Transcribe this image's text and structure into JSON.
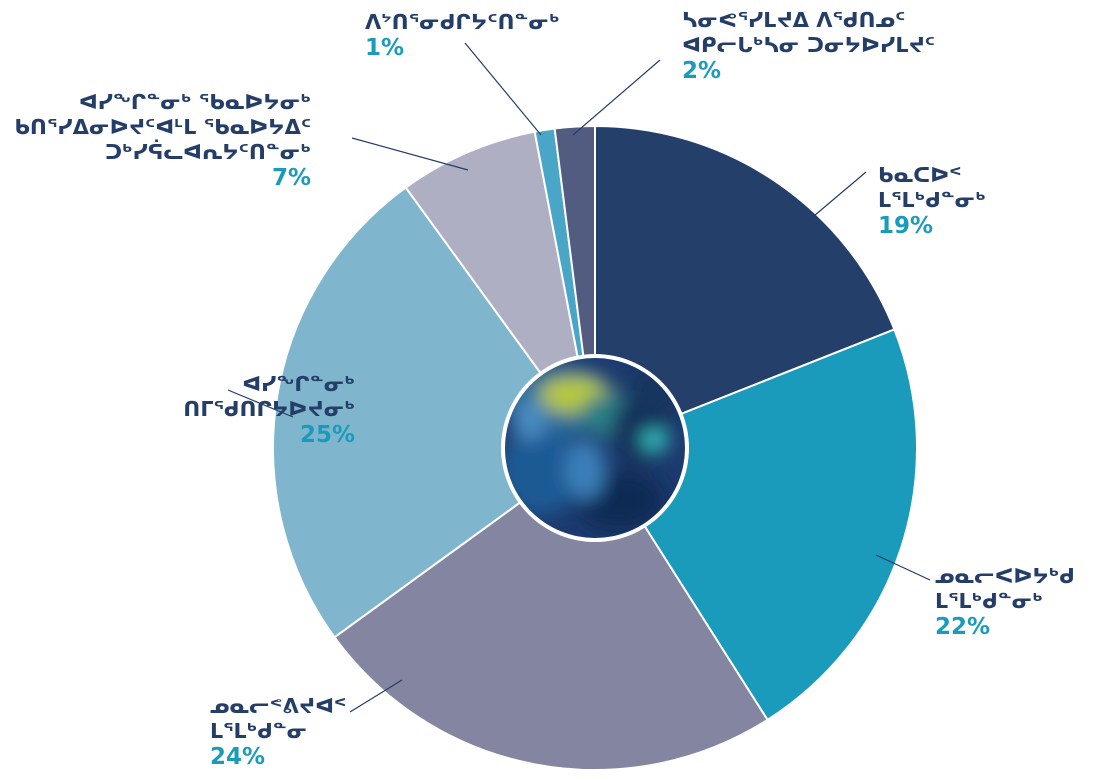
{
  "chart_data": {
    "type": "pie",
    "title": "",
    "slices": [
      {
        "label": [
          "ᑲᓇᑕᐅᑉ",
          "ᒪᕐᒪᒃᑯᓐᓂᒃ"
        ],
        "value": 19,
        "value_label": "19%",
        "color": "#233f6a"
      },
      {
        "label": [
          "ᓄᓇᓕᐸᐅᔭᒃᑯ",
          "ᒪᕐᒪᒃᑯᓐᓂᒃ"
        ],
        "value": 22,
        "value_label": "22%",
        "color": "#1b9bbb"
      },
      {
        "label": [
          "ᓄᓇᓕᕝᕕᔪᐊᑉ",
          "ᒪᕐᒪᒃᑯᓐᓂ"
        ],
        "value": 24,
        "value_label": "24%",
        "color": "#8485a1"
      },
      {
        "label": [
          "ᐊᓯᖏᓐᓂᒃ",
          "ᑎᒥᖁᑎᒋᔭᐅᔪᓂᒃ"
        ],
        "value": 25,
        "value_label": "25%",
        "color": "#7fb6ce"
      },
      {
        "label": [
          "ᐊᓯᖏᓐᓂᒃ ᖃᓇᐅᔭᓂᒃ",
          "ᑲᑎᕐᓯᐃᓂᐅᔪᑦᐊᒻᒪ ᖃᓇᐅᔭᐃᑦ",
          "ᑐᒃᓯᕌᓚᐊᕆᔭᑦᑎᓐᓂᒃ"
        ],
        "value": 7,
        "value_label": "7%",
        "color": "#aeafc3"
      },
      {
        "label": [
          "ᐱᔾᑎᕐᓂᑯᒋᔭᑦᑎᓐᓂᒃ"
        ],
        "value": 1,
        "value_label": "1%",
        "color": "#4aa6c7"
      },
      {
        "label": [
          "ᓴᓂᕙᕐᓯᒪᔪᐃ ᐱᖁᑎᓄᑦ",
          "ᐊᑭᓕᒐᒃᓴᓂ ᑐᓂᔭᐅᓯᒪᔪᑦ"
        ],
        "value": 2,
        "value_label": "2%",
        "color": "#515c80"
      }
    ],
    "legend": "none",
    "center_image": "abstract-painting"
  },
  "colors": {
    "label_text": "#243e68",
    "percent_text": "#1b9bbb",
    "leader_line": "#243e68",
    "slice_border": "#ffffff"
  }
}
